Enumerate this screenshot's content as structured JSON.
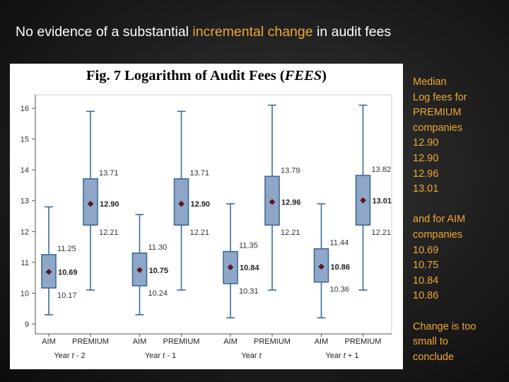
{
  "slide": {
    "title_pre": "No evidence of a substantial ",
    "title_highlight": "incremental change",
    "title_post": " in audit fees",
    "accent_color": "#f0a830"
  },
  "notes": {
    "premium_heading": [
      "Median",
      "Log fees for",
      "PREMIUM",
      "companies"
    ],
    "premium_values": [
      "12.90",
      "12.90",
      "12.96",
      "13.01"
    ],
    "aim_heading": [
      "and for AIM",
      "companies"
    ],
    "aim_values": [
      "10.69",
      "10.75",
      "10.84",
      "10.86"
    ],
    "conclusion": [
      "Change is too",
      "small to",
      "conclude"
    ]
  },
  "chart_data": {
    "type": "box",
    "title": "Fig. 7 Logarithm of Audit Fees (FEES)",
    "ylim": [
      8.9,
      16.35
    ],
    "yticks": [
      9,
      10,
      11,
      12,
      13,
      14,
      15,
      16
    ],
    "groups": [
      {
        "label": "Year t - 2",
        "boxes": [
          {
            "name": "AIM",
            "min": 9.3,
            "q1": 10.17,
            "median": 10.69,
            "q3": 11.25,
            "max": 12.8,
            "labels": {
              "q1": "10.17",
              "median": "10.69",
              "q3": "11.25"
            }
          },
          {
            "name": "PREMIUM",
            "min": 10.1,
            "q1": 12.21,
            "median": 12.9,
            "q3": 13.71,
            "max": 15.9,
            "labels": {
              "q1": "12.21",
              "median": "12.90",
              "q3": "13.71"
            }
          }
        ]
      },
      {
        "label": "Year t - 1",
        "boxes": [
          {
            "name": "AIM",
            "min": 9.3,
            "q1": 10.24,
            "median": 10.75,
            "q3": 11.3,
            "max": 12.55,
            "labels": {
              "q1": "10.24",
              "median": "10.75",
              "q3": "11.30"
            }
          },
          {
            "name": "PREMIUM",
            "min": 10.1,
            "q1": 12.21,
            "median": 12.9,
            "q3": 13.71,
            "max": 15.9,
            "labels": {
              "q1": "12.21",
              "median": "12.90",
              "q3": "13.71"
            }
          }
        ]
      },
      {
        "label": "Year t",
        "boxes": [
          {
            "name": "AIM",
            "min": 9.2,
            "q1": 10.31,
            "median": 10.84,
            "q3": 11.35,
            "max": 12.9,
            "labels": {
              "q1": "10.31",
              "median": "10.84",
              "q3": "11.35"
            }
          },
          {
            "name": "PREMIUM",
            "min": 10.1,
            "q1": 12.21,
            "median": 12.96,
            "q3": 13.79,
            "max": 16.1,
            "labels": {
              "q1": "12.21",
              "median": "12.96",
              "q3": "13.79"
            }
          }
        ]
      },
      {
        "label": "Year t + 1",
        "boxes": [
          {
            "name": "AIM",
            "min": 9.2,
            "q1": 10.36,
            "median": 10.86,
            "q3": 11.44,
            "max": 12.9,
            "labels": {
              "q1": "10.36",
              "median": "10.86",
              "q3": "11.44"
            }
          },
          {
            "name": "PREMIUM",
            "min": 10.1,
            "q1": 12.21,
            "median": 13.01,
            "q3": 13.82,
            "max": 16.1,
            "labels": {
              "q1": "12.21",
              "median": "13.01",
              "q3": "13.82"
            }
          }
        ]
      }
    ],
    "colors": {
      "box_fill": "#8ea7c8",
      "box_stroke": "#3d6a97",
      "median_marker": "#7a1420",
      "axis": "#555555"
    }
  }
}
